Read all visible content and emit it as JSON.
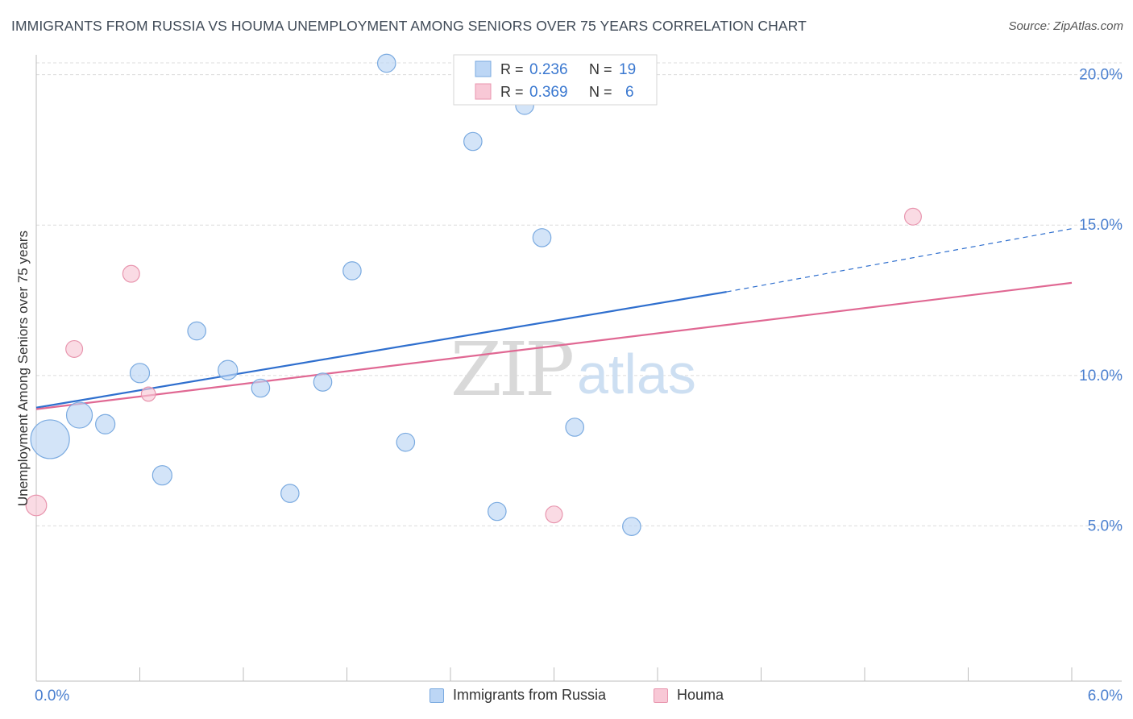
{
  "title": "IMMIGRANTS FROM RUSSIA VS HOUMA UNEMPLOYMENT AMONG SENIORS OVER 75 YEARS CORRELATION CHART",
  "source": "Source: ZipAtlas.com",
  "watermark": {
    "zip": "ZIP",
    "atlas": "atlas"
  },
  "colors": {
    "russia_fill": "#bcd6f5",
    "russia_stroke": "#7aaae0",
    "russia_line": "#2f6fce",
    "houma_fill": "#f8c8d6",
    "houma_stroke": "#e895ae",
    "houma_line": "#e06893",
    "axis_label": "#4a7fcf"
  },
  "stats_legend": [
    {
      "r_label": "R =",
      "r_value": "0.236",
      "n_label": "N =",
      "n_value": "19"
    },
    {
      "r_label": "R =",
      "r_value": "0.369",
      "n_label": "N =",
      "n_value": "6"
    }
  ],
  "chart_data": {
    "type": "scatter",
    "title": "IMMIGRANTS FROM RUSSIA VS HOUMA UNEMPLOYMENT AMONG SENIORS OVER 75 YEARS CORRELATION CHART",
    "xlabel": "",
    "ylabel": "Unemployment Among Seniors over 75 years",
    "xlim": [
      0,
      6
    ],
    "ylim": [
      0,
      20.5
    ],
    "x_tick_labels": [
      "0.0%",
      "6.0%"
    ],
    "y_tick_labels": [
      "5.0%",
      "10.0%",
      "15.0%",
      "20.0%"
    ],
    "y_ticks": [
      5,
      10,
      15,
      20
    ],
    "grid": true,
    "legend": "bottom-center",
    "series": [
      {
        "name": "Immigrants from Russia",
        "points": [
          {
            "x": 0.08,
            "y": 7.8,
            "size": 3
          },
          {
            "x": 0.25,
            "y": 8.6,
            "size": 2
          },
          {
            "x": 0.4,
            "y": 8.3,
            "size": 1.5
          },
          {
            "x": 0.6,
            "y": 10.0,
            "size": 1.5
          },
          {
            "x": 0.73,
            "y": 6.6,
            "size": 1.5
          },
          {
            "x": 0.93,
            "y": 11.4,
            "size": 1.4
          },
          {
            "x": 1.11,
            "y": 10.1,
            "size": 1.5
          },
          {
            "x": 1.3,
            "y": 9.5,
            "size": 1.4
          },
          {
            "x": 1.47,
            "y": 6.0,
            "size": 1.4
          },
          {
            "x": 1.66,
            "y": 9.7,
            "size": 1.4
          },
          {
            "x": 1.83,
            "y": 13.4,
            "size": 1.4
          },
          {
            "x": 2.03,
            "y": 20.3,
            "size": 1.4
          },
          {
            "x": 2.14,
            "y": 7.7,
            "size": 1.4
          },
          {
            "x": 2.53,
            "y": 17.7,
            "size": 1.4
          },
          {
            "x": 2.67,
            "y": 5.4,
            "size": 1.4
          },
          {
            "x": 2.83,
            "y": 18.9,
            "size": 1.4
          },
          {
            "x": 2.93,
            "y": 14.5,
            "size": 1.4
          },
          {
            "x": 3.12,
            "y": 8.2,
            "size": 1.4
          },
          {
            "x": 3.45,
            "y": 4.9,
            "size": 1.4
          }
        ],
        "trend": {
          "x0": 0.0,
          "y0": 8.85,
          "x1": 4.0,
          "y1": 12.7,
          "dashed_to_x": 6.0,
          "dashed_to_y": 14.8
        }
      },
      {
        "name": "Houma",
        "points": [
          {
            "x": 0.0,
            "y": 5.6,
            "size": 1.6
          },
          {
            "x": 0.22,
            "y": 10.8,
            "size": 1.3
          },
          {
            "x": 0.55,
            "y": 13.3,
            "size": 1.3
          },
          {
            "x": 0.65,
            "y": 9.3,
            "size": 1.1
          },
          {
            "x": 3.0,
            "y": 5.3,
            "size": 1.3
          },
          {
            "x": 5.08,
            "y": 15.2,
            "size": 1.3
          }
        ],
        "trend": {
          "x0": 0.0,
          "y0": 8.8,
          "x1": 6.0,
          "y1": 13.0
        }
      }
    ]
  },
  "legend_bottom": [
    {
      "label": "Immigrants from Russia"
    },
    {
      "label": "Houma"
    }
  ]
}
